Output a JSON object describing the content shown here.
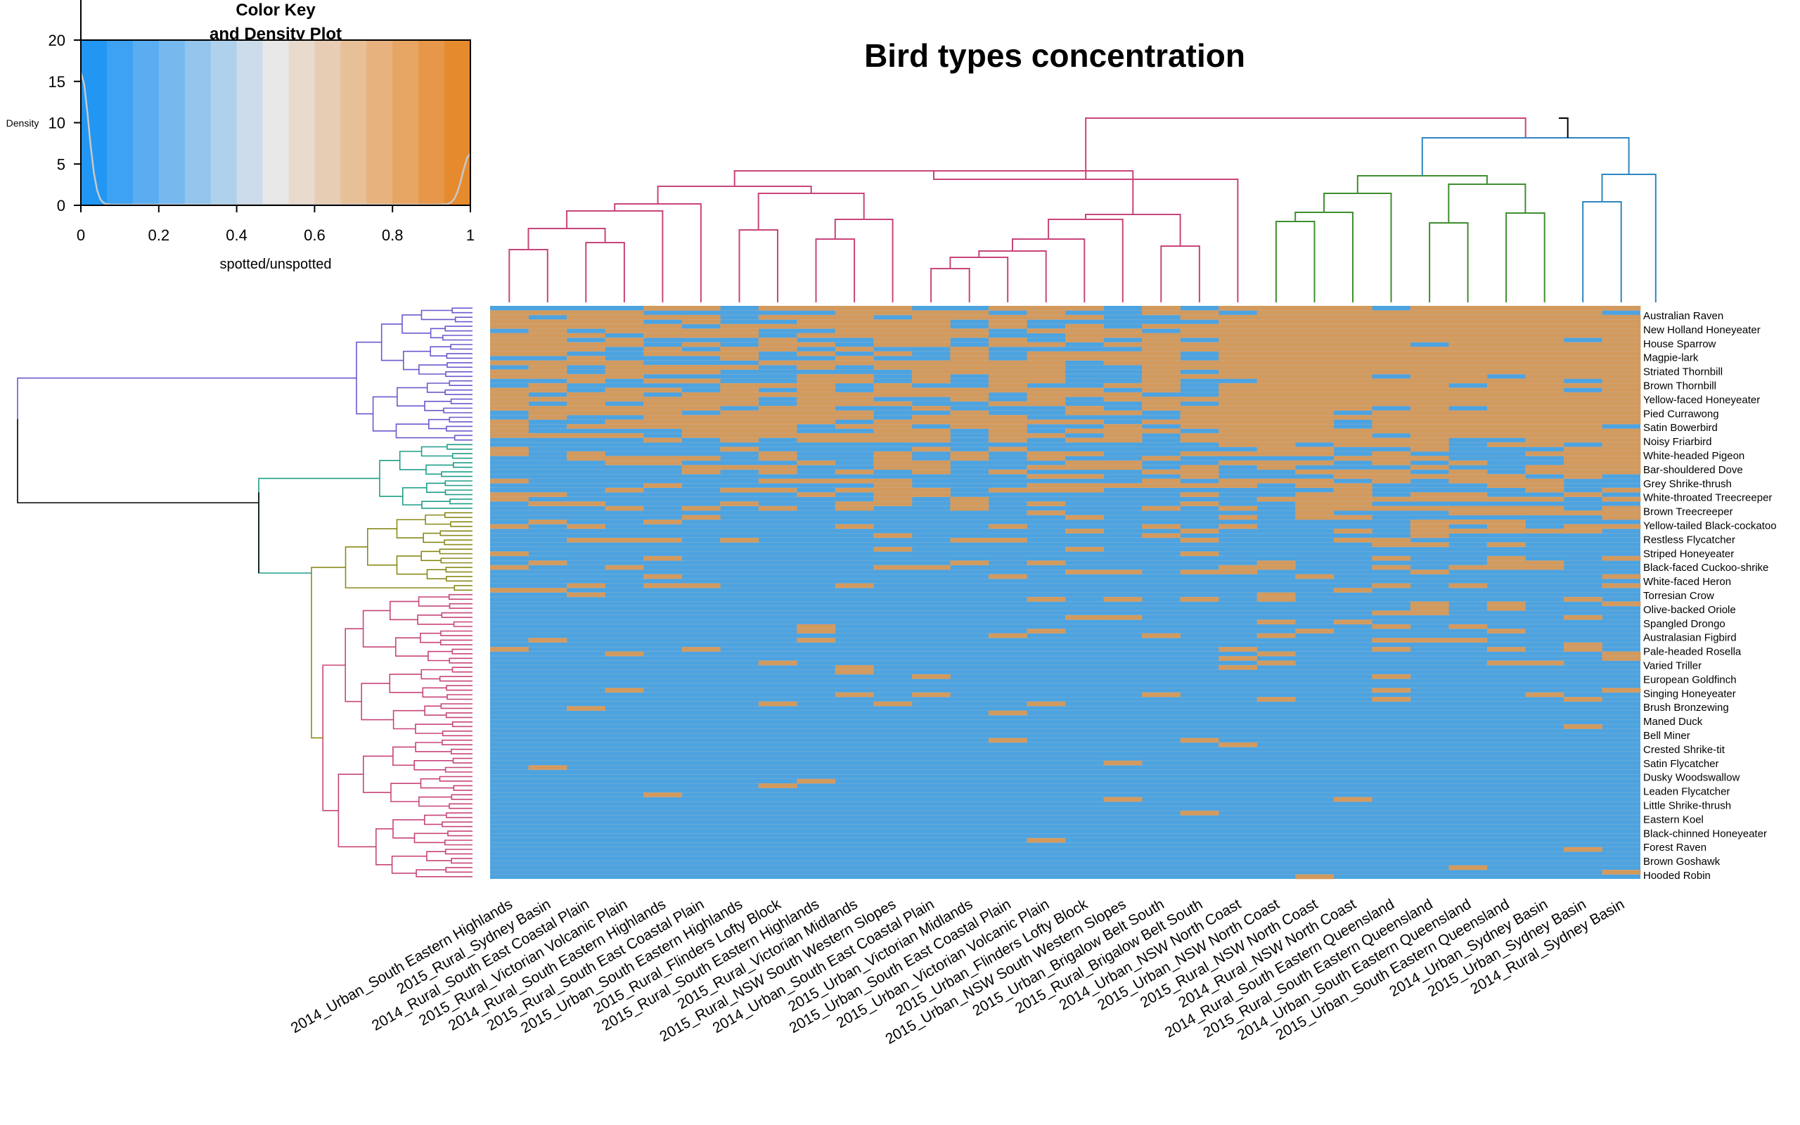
{
  "chart_data": {
    "type": "heatmap",
    "title": "Bird types concentration",
    "color_key": {
      "title_line1": "Color Key",
      "title_line2": "and Density Plot",
      "xlabel": "spotted/unspotted",
      "ylabel": "Density",
      "x_ticks": [
        "0",
        "0.2",
        "0.4",
        "0.6",
        "0.8",
        "1"
      ],
      "y_ticks": [
        "0",
        "5",
        "10",
        "15",
        "20"
      ],
      "xlim": [
        0,
        1
      ],
      "ylim": [
        0,
        20
      ],
      "low_color": "#2196F3",
      "mid_color": "#E8E8E8",
      "high_color": "#E68A2E"
    },
    "colors": {
      "unspotted": "#4DA3E0",
      "spotted": "#D39A5E",
      "magenta_cluster": "#C8457A",
      "green_cluster": "#3E8E2E",
      "blue_cluster": "#2E86C1",
      "purple_cluster": "#6A5ACD",
      "teal_cluster": "#1F9E89",
      "olive_cluster": "#8A8A1A",
      "root": "#000000"
    },
    "columns": [
      "2014_Urban_South Eastern Highlands",
      "2015_Rural_Sydney Basin",
      "2014_Rural_South East Coastal Plain",
      "2015_Rural_Victorian Volcanic Plain",
      "2014_Rural_South Eastern Highlands",
      "2015_Rural_South East Coastal Plain",
      "2015_Urban_South Eastern Highlands",
      "2015_Rural_Flinders Lofty Block",
      "2015_Rural_South Eastern Highlands",
      "2015_Rural_Victorian Midlands",
      "2015_Rural_NSW South Western Slopes",
      "2014_Urban_South East Coastal Plain",
      "2015_Urban_Victorian Midlands",
      "2015_Urban_South East Coastal Plain",
      "2015_Urban_Victorian Volcanic Plain",
      "2015_Urban_Flinders Lofty Block",
      "2015_Urban_NSW South Western Slopes",
      "2015_Urban_Brigalow Belt South",
      "2015_Rural_Brigalow Belt South",
      "2014_Urban_NSW North Coast",
      "2015_Urban_NSW North Coast",
      "2015_Rural_NSW North Coast",
      "2014_Rural_NSW North Coast",
      "2014_Rural_South Eastern Queensland",
      "2015_Rural_South Eastern Queensland",
      "2014_Urban_South Eastern Queensland",
      "2015_Urban_South Eastern Queensland",
      "2014_Urban_Sydney Basin",
      "2015_Urban_Sydney Basin",
      "2014_Rural_Sydney Basin"
    ],
    "row_labels": [
      "Australian Raven",
      "New Holland Honeyeater",
      "House Sparrow",
      "Magpie-lark",
      "Striated Thornbill",
      "Brown Thornbill",
      "Yellow-faced Honeyeater",
      "Pied Currawong",
      "Satin Bowerbird",
      "Noisy Friarbird",
      "White-headed Pigeon",
      "Bar-shouldered Dove",
      "Grey Shrike-thrush",
      "White-throated Treecreeper",
      "Brown Treecreeper",
      "Yellow-tailed Black-cockatoo",
      "Restless Flycatcher",
      "Striped Honeyeater",
      "Black-faced Cuckoo-shrike",
      "White-faced Heron",
      "Torresian Crow",
      "Olive-backed Oriole",
      "Spangled Drongo",
      "Australasian Figbird",
      "Pale-headed Rosella",
      "Varied Triller",
      "European Goldfinch",
      "Singing Honeyeater",
      "Brush Bronzewing",
      "Maned Duck",
      "Bell Miner",
      "Crested Shrike-tit",
      "Satin Flycatcher",
      "Dusky Woodswallow",
      "Leaden Flycatcher",
      "Little Shrike-thrush",
      "Eastern Koel",
      "Black-chinned Honeyeater",
      "Forest Raven",
      "Brown Goshawk",
      "Hooded Robin"
    ]
  }
}
